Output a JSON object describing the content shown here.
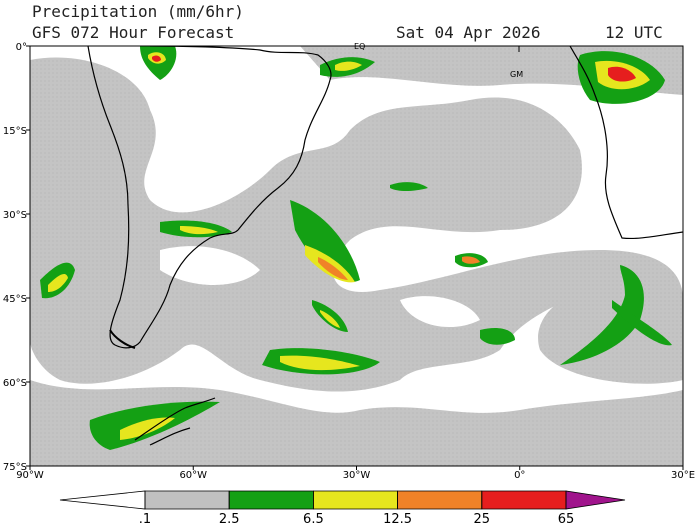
{
  "header": {
    "title": "Precipitation (mm/6hr)",
    "subtitle": "GFS 072 Hour Forecast",
    "date": "Sat 04 Apr 2026",
    "time": "12 UTC"
  },
  "map": {
    "xlim": [
      -90,
      30
    ],
    "ylim": [
      -75,
      0
    ],
    "xticks": [
      {
        "value": -90,
        "label": "90°W"
      },
      {
        "value": -60,
        "label": "60°W"
      },
      {
        "value": -30,
        "label": "30°W"
      },
      {
        "value": 0,
        "label": "0°"
      },
      {
        "value": 30,
        "label": "30°E"
      }
    ],
    "yticks": [
      {
        "value": 0,
        "label": "0°"
      },
      {
        "value": -15,
        "label": "15°S"
      },
      {
        "value": -30,
        "label": "30°S"
      },
      {
        "value": -45,
        "label": "45°S"
      },
      {
        "value": -60,
        "label": "60°S"
      },
      {
        "value": -75,
        "label": "75°S"
      }
    ],
    "annotations": [
      "EQ",
      "GM"
    ]
  },
  "colorbar": {
    "levels": [
      {
        "value": 0.1,
        "label": ".1"
      },
      2.5,
      6.5,
      12.5,
      25,
      65
    ],
    "colors": [
      "#ffffff",
      "#c0c0c0",
      "#14a014",
      "#e6e61e",
      "#f08228",
      "#e61e1e",
      "#a0148c"
    ]
  }
}
